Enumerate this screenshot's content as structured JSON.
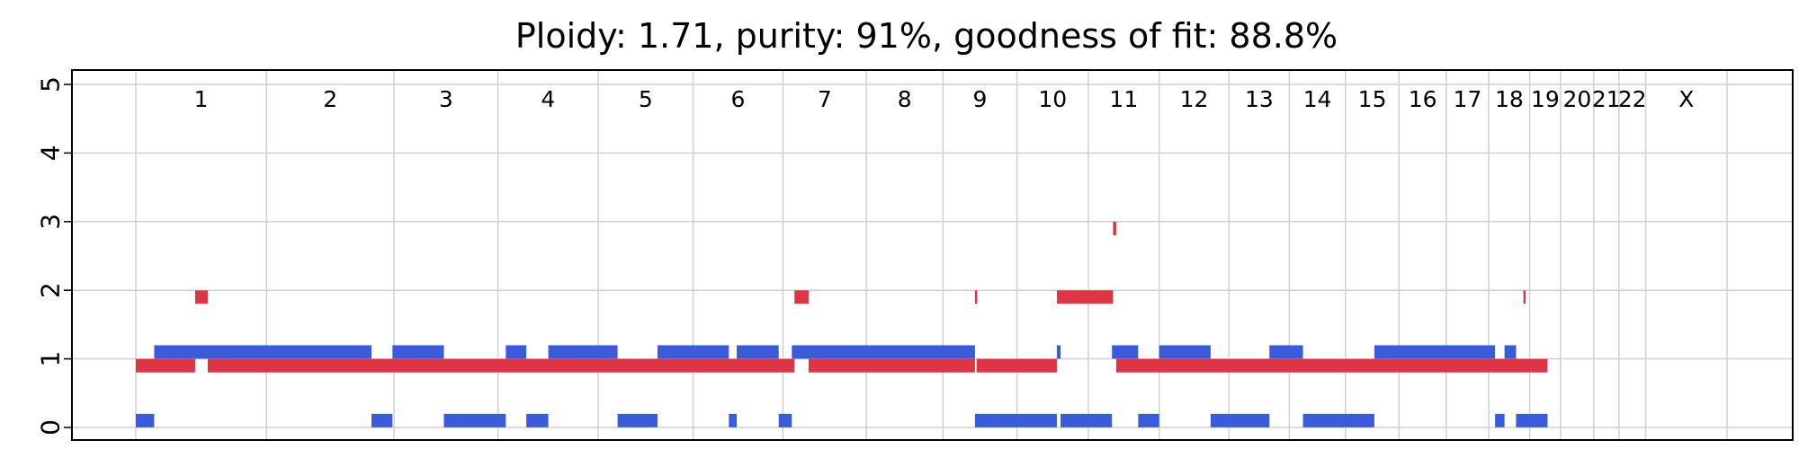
{
  "chart_data": {
    "type": "copy-number-profile",
    "title": "Ploidy: 1.71, purity: 91%, goodness of fit: 88.8%",
    "xlabel": "",
    "ylabel": "",
    "ylim": [
      0,
      5
    ],
    "yticks": [
      0,
      1,
      2,
      3,
      4,
      5
    ],
    "grid": true,
    "x_unit": "genome position (Mb, chromosomes concatenated)",
    "chromosomes": [
      {
        "name": "1",
        "length": 249
      },
      {
        "name": "2",
        "length": 243
      },
      {
        "name": "3",
        "length": 198
      },
      {
        "name": "4",
        "length": 191
      },
      {
        "name": "5",
        "length": 181
      },
      {
        "name": "6",
        "length": 171
      },
      {
        "name": "7",
        "length": 159
      },
      {
        "name": "8",
        "length": 146
      },
      {
        "name": "9",
        "length": 141
      },
      {
        "name": "10",
        "length": 136
      },
      {
        "name": "11",
        "length": 135
      },
      {
        "name": "12",
        "length": 133
      },
      {
        "name": "13",
        "length": 115
      },
      {
        "name": "14",
        "length": 107
      },
      {
        "name": "15",
        "length": 102
      },
      {
        "name": "16",
        "length": 90
      },
      {
        "name": "17",
        "length": 81
      },
      {
        "name": "18",
        "length": 78
      },
      {
        "name": "19",
        "length": 59
      },
      {
        "name": "20",
        "length": 63
      },
      {
        "name": "21",
        "length": 48
      },
      {
        "name": "22",
        "length": 51
      },
      {
        "name": "X",
        "length": 155
      }
    ],
    "series": [
      {
        "color": "#3b5bdb",
        "offset": 0.1,
        "segments": [
          {
            "start": 0,
            "end": 35,
            "value": 0
          },
          {
            "start": 35,
            "end": 449,
            "value": 1
          },
          {
            "start": 449,
            "end": 489,
            "value": 0
          },
          {
            "start": 489,
            "end": 587,
            "value": 1
          },
          {
            "start": 587,
            "end": 705,
            "value": 0
          },
          {
            "start": 705,
            "end": 744,
            "value": 1
          },
          {
            "start": 744,
            "end": 786,
            "value": 0
          },
          {
            "start": 786,
            "end": 918,
            "value": 1
          },
          {
            "start": 918,
            "end": 994,
            "value": 0
          },
          {
            "start": 994,
            "end": 1130,
            "value": 1
          },
          {
            "start": 1130,
            "end": 1145,
            "value": 0
          },
          {
            "start": 1145,
            "end": 1225,
            "value": 1
          },
          {
            "start": 1225,
            "end": 1250,
            "value": 0
          },
          {
            "start": 1250,
            "end": 1599,
            "value": 1
          },
          {
            "start": 1599,
            "end": 1602,
            "value": 0
          },
          {
            "start": 1602,
            "end": 1755,
            "value": 0
          },
          {
            "start": 1755,
            "end": 1762,
            "value": 1
          },
          {
            "start": 1762,
            "end": 1860,
            "value": 0
          },
          {
            "start": 1860,
            "end": 1910,
            "value": 1
          },
          {
            "start": 1910,
            "end": 1950,
            "value": 0
          },
          {
            "start": 1950,
            "end": 2048,
            "value": 1
          },
          {
            "start": 2048,
            "end": 2160,
            "value": 0
          },
          {
            "start": 2160,
            "end": 2224,
            "value": 1
          },
          {
            "start": 2224,
            "end": 2360,
            "value": 0
          },
          {
            "start": 2360,
            "end": 2590,
            "value": 1
          },
          {
            "start": 2590,
            "end": 2608,
            "value": 0
          },
          {
            "start": 2608,
            "end": 2630,
            "value": 1
          },
          {
            "start": 2630,
            "end": 2690,
            "value": 0
          }
        ]
      },
      {
        "color": "#dc3545",
        "offset": -0.1,
        "segments": [
          {
            "start": 0,
            "end": 113,
            "value": 1
          },
          {
            "start": 113,
            "end": 137,
            "value": 2
          },
          {
            "start": 137,
            "end": 1255,
            "value": 1
          },
          {
            "start": 1255,
            "end": 1282,
            "value": 2
          },
          {
            "start": 1282,
            "end": 1599,
            "value": 1
          },
          {
            "start": 1599,
            "end": 1602,
            "value": 2
          },
          {
            "start": 1602,
            "end": 1755,
            "value": 1
          },
          {
            "start": 1755,
            "end": 1862,
            "value": 2
          },
          {
            "start": 1862,
            "end": 1868,
            "value": 3
          },
          {
            "start": 1868,
            "end": 2690,
            "value": 1
          },
          {
            "start": 2644,
            "end": 2648,
            "value": 2
          }
        ]
      }
    ]
  }
}
